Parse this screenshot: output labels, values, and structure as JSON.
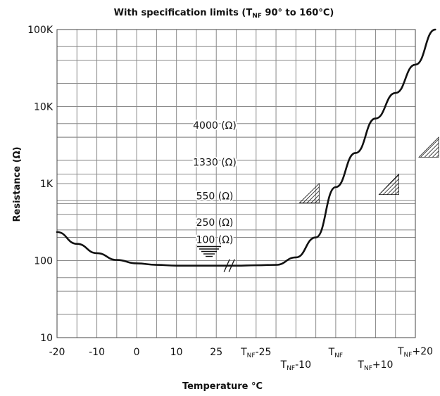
{
  "chart_data": {
    "type": "line",
    "title": "With specification limits (T",
    "title_sub": "NF",
    "title_rest": " 90° to 160°C)",
    "xlabel": "Temperature °C",
    "ylabel": "Resistance (Ω)",
    "y_scale": "log",
    "ylim": [
      10,
      100000
    ],
    "y_ticks": [
      {
        "value": 10,
        "label": "10"
      },
      {
        "value": 100,
        "label": "100"
      },
      {
        "value": 1000,
        "label": "1K"
      },
      {
        "value": 10000,
        "label": "10K"
      },
      {
        "value": 100000,
        "label": "100K"
      }
    ],
    "x_ticks": [
      {
        "main": "-20",
        "sub": "",
        "rest": "",
        "row": 0
      },
      {
        "main": "-10",
        "sub": "",
        "rest": "",
        "row": 0
      },
      {
        "main": "0",
        "sub": "",
        "rest": "",
        "row": 0
      },
      {
        "main": "10",
        "sub": "",
        "rest": "",
        "row": 0
      },
      {
        "main": "25",
        "sub": "",
        "rest": "",
        "row": 0
      },
      {
        "main": "T",
        "sub": "NF",
        "rest": "-25",
        "row": 0
      },
      {
        "main": "T",
        "sub": "NF",
        "rest": "-10",
        "row": 1
      },
      {
        "main": "T",
        "sub": "NF",
        "rest": "",
        "row": 0
      },
      {
        "main": "T",
        "sub": "NF",
        "rest": "+10",
        "row": 1
      },
      {
        "main": "T",
        "sub": "NF",
        "rest": "+20",
        "row": -1
      }
    ],
    "band_labels": [
      {
        "text": "4000 (Ω)",
        "value": 4000
      },
      {
        "text": "1330 (Ω)",
        "value": 1330
      },
      {
        "text": "550 (Ω)",
        "value": 550
      },
      {
        "text": "250 (Ω)",
        "value": 250
      },
      {
        "text": "100 (Ω)",
        "value": 100
      }
    ],
    "series": [
      {
        "x_ticks_index": [
          0,
          0.5,
          1,
          1.5,
          2,
          2.5,
          3,
          3.5,
          4,
          4.5,
          5,
          5.5,
          6,
          6.5,
          7,
          7.5,
          8,
          8.5,
          9,
          9.5
        ],
        "values": [
          235,
          165,
          125,
          102,
          92,
          88,
          86,
          86,
          86,
          86,
          87,
          88,
          110,
          200,
          900,
          2500,
          7000,
          15000,
          35000,
          100000
        ]
      }
    ]
  }
}
